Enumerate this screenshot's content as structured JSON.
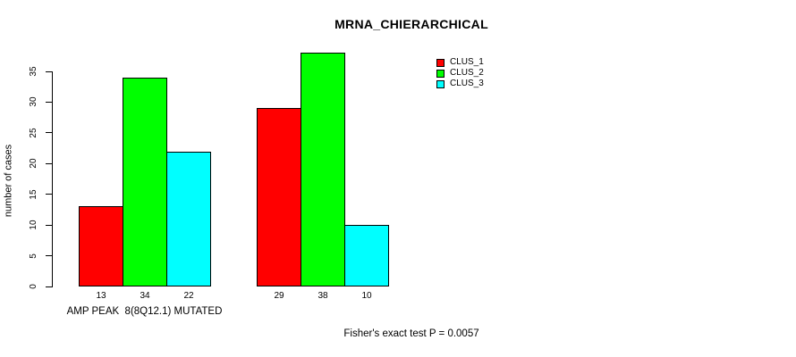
{
  "chart_data": {
    "type": "bar",
    "title": "MRNA_CHIERARCHICAL",
    "ylabel": "number of cases",
    "xlabel": "",
    "categories": [
      "AMP PEAK  8(8Q12.1) MUTATED",
      ""
    ],
    "series": [
      {
        "name": "CLUS_1",
        "color": "#ff0000",
        "values": [
          13,
          29
        ]
      },
      {
        "name": "CLUS_2",
        "color": "#00ff00",
        "values": [
          34,
          38
        ]
      },
      {
        "name": "CLUS_3",
        "color": "#00ffff",
        "values": [
          22,
          10
        ]
      }
    ],
    "bar_value_labels": [
      [
        13,
        34,
        22
      ],
      [
        29,
        38,
        10
      ]
    ],
    "yticks": [
      0,
      5,
      10,
      15,
      20,
      25,
      30,
      35
    ],
    "ylim": [
      0,
      35
    ],
    "grid": false,
    "legend_position": "top-right",
    "annotation": "Fisher's exact test P = 0.0057",
    "bar_border_color": "#000000",
    "axis_color": "#000000"
  }
}
